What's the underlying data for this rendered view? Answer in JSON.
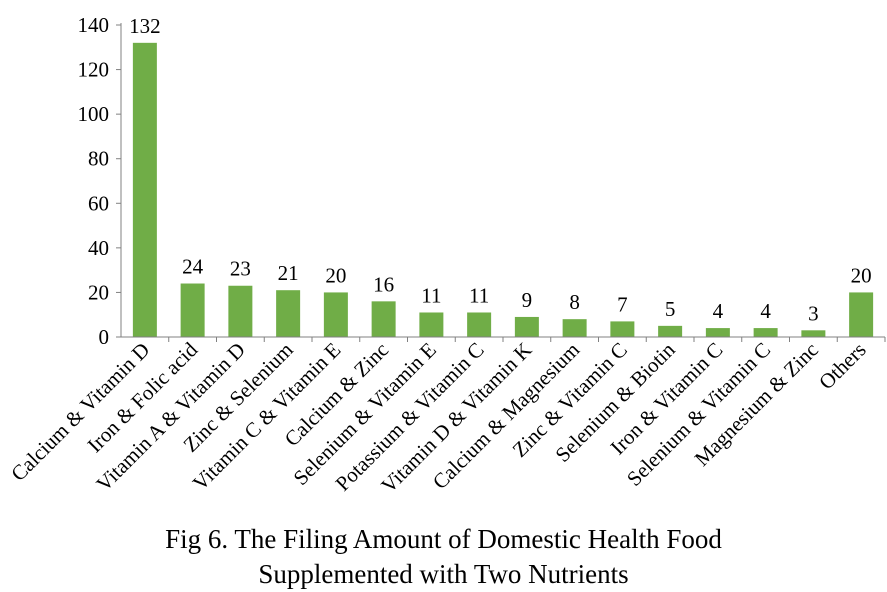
{
  "chart_data": {
    "type": "bar",
    "categories": [
      "Calcium & Vitamin D",
      "Iron & Folic acid",
      "Vitamin A & Vitamin D",
      "Zinc & Selenium",
      "Vitamin C & Vitamin E",
      "Calcium & Zinc",
      "Selenium & Vitamin E",
      "Potassium & Vitamin C",
      "Vitamin D & Vitamin K",
      "Calcium & Magnesium",
      "Zinc & Vitamin C",
      "Selenium & Biotin",
      "Iron & Vitamin C",
      "Selenium & Vitamin C",
      "Magnesium & Zinc",
      "Others"
    ],
    "values": [
      132,
      24,
      23,
      21,
      20,
      16,
      11,
      11,
      9,
      8,
      7,
      5,
      4,
      4,
      3,
      20
    ],
    "data_labels": [
      "132",
      "24",
      "23",
      "21",
      "20",
      "16",
      "11",
      "11",
      "9",
      "8",
      "7",
      "5",
      "4",
      "4",
      "3",
      "20"
    ],
    "title": "",
    "xlabel": "",
    "ylabel": "",
    "ylim": [
      0,
      140
    ],
    "yticks": [
      "0",
      "20",
      "40",
      "60",
      "80",
      "100",
      "120",
      "140"
    ],
    "grid": false,
    "legend": "none",
    "bar_color": "#70ad47"
  },
  "caption": {
    "line1": "Fig 6. The Filing Amount of Domestic Health Food",
    "line2": "Supplemented with Two Nutrients"
  }
}
